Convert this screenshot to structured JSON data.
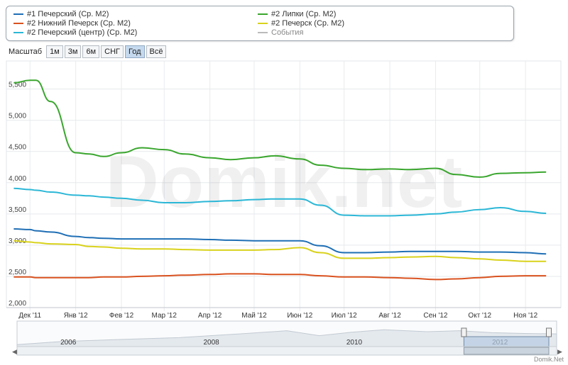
{
  "legend": {
    "items": [
      {
        "label": "#1 Печерский (Ср. М2)",
        "color": "#1f6fb5"
      },
      {
        "label": "#2 Нижний Печерск (Ср. М2)",
        "color": "#d9521f"
      },
      {
        "label": "#2 Печерский (центр) (Ср. М2)",
        "color": "#2bb7d6"
      },
      {
        "label": "#2 Липки (Ср. М2)",
        "color": "#3aa62e"
      },
      {
        "label": "#2 Печерск (Ср. М2)",
        "color": "#d9d21c"
      },
      {
        "label": "События",
        "color": "#bbbbbb"
      }
    ]
  },
  "zoom": {
    "label": "Масштаб",
    "buttons": [
      "1м",
      "3м",
      "6м",
      "СНГ",
      "Год",
      "Всё"
    ],
    "selected": "Год"
  },
  "watermark": "Domik.net",
  "footer": "Domik.Net",
  "chart_data": {
    "type": "line",
    "x": [
      "2011-11-20",
      "2011-12-01",
      "2011-12-05",
      "2011-12-15",
      "2012-01-01",
      "2012-01-10",
      "2012-01-20",
      "2012-02-01",
      "2012-02-15",
      "2012-03-01",
      "2012-03-15",
      "2012-04-01",
      "2012-04-15",
      "2012-05-01",
      "2012-05-15",
      "2012-06-01",
      "2012-06-15",
      "2012-07-01",
      "2012-07-15",
      "2012-08-01",
      "2012-08-15",
      "2012-09-01",
      "2012-09-15",
      "2012-10-01",
      "2012-10-15",
      "2012-11-01",
      "2012-11-15"
    ],
    "x_ticks": [
      "Дек '11",
      "Янв '12",
      "Фев '12",
      "Мар '12",
      "Апр '12",
      "Май '12",
      "Июн '12",
      "Июл '12",
      "Авг '12",
      "Сен '12",
      "Окт '12",
      "Ноя '12"
    ],
    "y_ticks": [
      "2,000",
      "2,500",
      "3,000",
      "3,500",
      "4,000",
      "4,500",
      "5,000",
      "5,500"
    ],
    "ylim": [
      2000,
      5950
    ],
    "series": [
      {
        "name": "#1 Печерский (Ср. М2)",
        "color": "#1f6fb5",
        "values": [
          3260,
          3250,
          3230,
          3210,
          3140,
          3120,
          3110,
          3100,
          3100,
          3100,
          3100,
          3090,
          3080,
          3070,
          3070,
          3070,
          2990,
          2880,
          2880,
          2890,
          2900,
          2900,
          2900,
          2890,
          2890,
          2880,
          2860
        ]
      },
      {
        "name": "#2 Нижний Печерск (Ср. М2)",
        "color": "#d9521f",
        "values": [
          2490,
          2490,
          2480,
          2480,
          2480,
          2480,
          2490,
          2490,
          2500,
          2510,
          2520,
          2530,
          2540,
          2540,
          2530,
          2530,
          2510,
          2490,
          2490,
          2480,
          2470,
          2450,
          2460,
          2480,
          2500,
          2510,
          2510
        ]
      },
      {
        "name": "#2 Печерский (центр) (Ср. М2)",
        "color": "#2bb7d6",
        "values": [
          3910,
          3890,
          3880,
          3850,
          3800,
          3790,
          3770,
          3750,
          3720,
          3680,
          3680,
          3700,
          3710,
          3730,
          3740,
          3740,
          3640,
          3480,
          3470,
          3470,
          3480,
          3500,
          3530,
          3570,
          3600,
          3540,
          3510
        ]
      },
      {
        "name": "#2 Липки (Ср. М2)",
        "color": "#3aa62e",
        "values": [
          5600,
          5640,
          5640,
          5300,
          4480,
          4460,
          4420,
          4480,
          4560,
          4530,
          4460,
          4400,
          4370,
          4400,
          4430,
          4380,
          4280,
          4230,
          4210,
          4220,
          4210,
          4230,
          4130,
          4090,
          4150,
          4160,
          4170
        ]
      },
      {
        "name": "#2 Печерск (Ср. М2)",
        "color": "#d9d21c",
        "values": [
          3070,
          3050,
          3040,
          3020,
          3010,
          2980,
          2970,
          2950,
          2940,
          2940,
          2930,
          2920,
          2920,
          2920,
          2930,
          2960,
          2880,
          2790,
          2790,
          2800,
          2810,
          2820,
          2800,
          2780,
          2760,
          2740,
          2740
        ]
      }
    ]
  },
  "navigator": {
    "years": [
      "2006",
      "2008",
      "2010",
      "2012"
    ],
    "range_start": 0.84,
    "range_end": 1.0
  }
}
